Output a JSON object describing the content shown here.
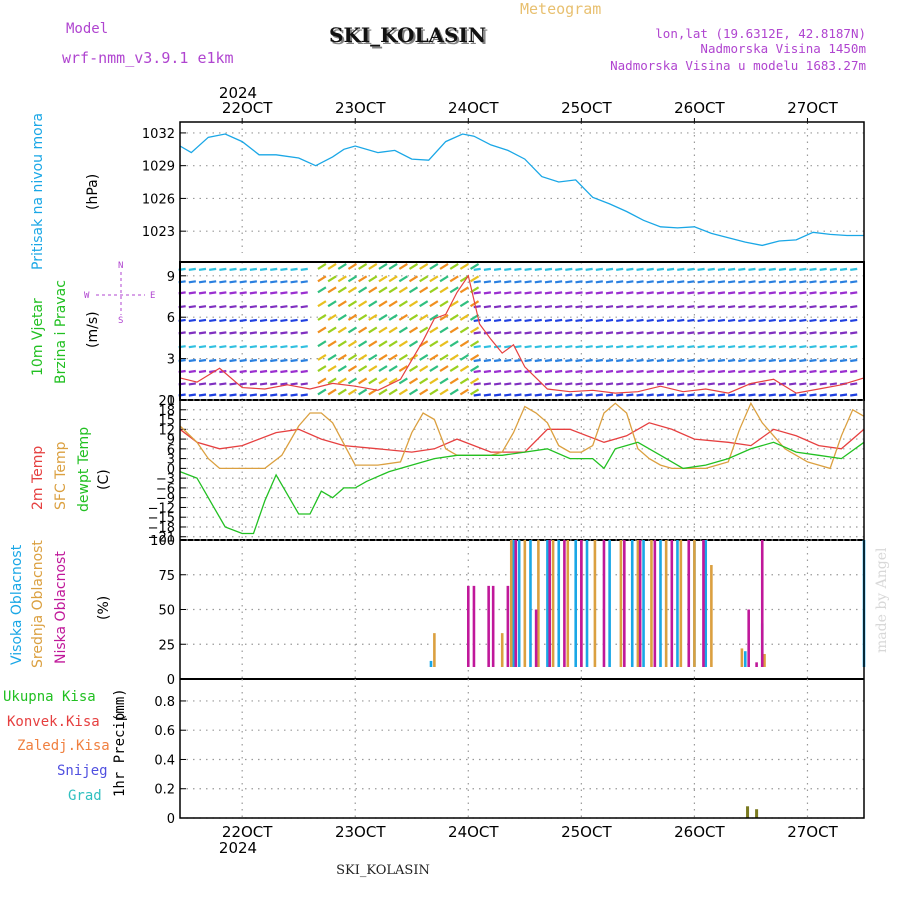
{
  "header": {
    "model_label": "Model",
    "model_value": "wrf-nmm_v3.9.1  e1km",
    "title": "SKI_KOLASIN",
    "meteogram": "Meteogram",
    "lonlat": "lon,lat (19.6312E, 42.8187N)",
    "altitude": "Nadmorska Visina 1450m",
    "model_altitude": "Nadmorska Visina u modelu 1683.27m",
    "footer_station": "SKI_KOLASIN",
    "watermark": "made by Angel"
  },
  "time_axis": {
    "year": "2024",
    "labels": [
      "22OCT",
      "23OCT",
      "24OCT",
      "25OCT",
      "26OCT",
      "27OCT"
    ]
  },
  "panel_labels": {
    "pressure": [
      "Pritisak na nivou mora",
      "(hPa)"
    ],
    "wind": [
      "10m Vjetar",
      "Brzina i Pravac",
      "(m/s)"
    ],
    "wind_compass": [
      "N",
      "W",
      "E",
      "S",
      "<",
      ">",
      "|",
      "^"
    ],
    "temp": [
      "2m Temp",
      "SFC Temp",
      "dewpt Temp",
      "(C)"
    ],
    "cloud": [
      "Visoka Oblacnost",
      "Srednja Oblacnost",
      "Niska Oblacnost",
      "(%)"
    ],
    "precip": [
      "Ukupna Kisa",
      "Konvek.Kisa",
      "Zaledj.Kisa",
      "Snijeg",
      "Grad",
      "1hr Precip",
      "(mm)"
    ]
  },
  "colors": {
    "pressure": "#1aa7e6",
    "temp2m": "#e64040",
    "sfc": "#dba040",
    "dew": "#22c022",
    "high": "#1aa7e6",
    "mid": "#dba040",
    "low": "#c0189a",
    "precip": "#7a7a20",
    "purple": "#b045d0"
  },
  "chart_data": [
    {
      "type": "line",
      "name": "pressure",
      "ylabel": "(hPa)",
      "ylim": [
        1021,
        1033
      ],
      "yticks": [
        1023,
        1026,
        1029,
        1032
      ],
      "x": [
        21.45,
        21.55,
        21.7,
        21.85,
        22.0,
        22.15,
        22.3,
        22.5,
        22.65,
        22.8,
        22.9,
        23.0,
        23.2,
        23.35,
        23.5,
        23.65,
        23.8,
        23.95,
        24.05,
        24.2,
        24.35,
        24.5,
        24.65,
        24.8,
        24.95,
        25.1,
        25.25,
        25.4,
        25.55,
        25.7,
        25.85,
        26.0,
        26.15,
        26.3,
        26.45,
        26.6,
        26.75,
        26.9,
        27.05,
        27.2,
        27.35,
        27.5
      ],
      "y": [
        1030.8,
        1030.2,
        1031.6,
        1031.9,
        1031.2,
        1030.0,
        1030.0,
        1029.7,
        1029.0,
        1029.8,
        1030.5,
        1030.8,
        1030.2,
        1030.4,
        1029.6,
        1029.5,
        1031.2,
        1031.9,
        1031.7,
        1030.9,
        1030.4,
        1029.6,
        1028.0,
        1027.5,
        1027.7,
        1026.1,
        1025.5,
        1024.8,
        1024.0,
        1023.4,
        1023.3,
        1023.4,
        1022.8,
        1022.4,
        1022.0,
        1021.7,
        1022.1,
        1022.2,
        1022.9,
        1022.7,
        1022.6,
        1022.6
      ]
    },
    {
      "type": "line",
      "name": "wind",
      "ylabel": "(m/s)",
      "ylim": [
        0,
        10
      ],
      "yticks": [
        0,
        3,
        6,
        9
      ],
      "x": [
        21.45,
        21.6,
        21.8,
        22.0,
        22.2,
        22.4,
        22.6,
        22.8,
        23.0,
        23.2,
        23.4,
        23.6,
        23.7,
        23.8,
        23.9,
        24.0,
        24.1,
        24.2,
        24.3,
        24.4,
        24.5,
        24.7,
        24.9,
        25.1,
        25.3,
        25.5,
        25.7,
        25.9,
        26.1,
        26.3,
        26.5,
        26.7,
        26.9,
        27.1,
        27.3,
        27.5
      ],
      "y": [
        1.6,
        1.3,
        2.3,
        0.9,
        0.8,
        1.1,
        0.8,
        1.2,
        1.0,
        0.7,
        1.5,
        4.3,
        5.9,
        6.2,
        7.8,
        9.0,
        5.5,
        4.4,
        3.4,
        4.0,
        2.4,
        0.8,
        0.6,
        0.7,
        0.5,
        0.6,
        1.0,
        0.6,
        0.8,
        0.5,
        1.2,
        1.5,
        0.5,
        0.8,
        1.1,
        1.6
      ]
    },
    {
      "type": "line",
      "name": "temperature",
      "ylabel": "(C)",
      "ylim": [
        -22,
        21
      ],
      "yticks": [
        -21,
        -18,
        -15,
        -12,
        -9,
        -6,
        -3,
        0,
        3,
        6,
        9,
        12,
        15,
        18,
        21
      ],
      "series": [
        {
          "name": "2m Temp",
          "x": [
            21.45,
            21.6,
            21.8,
            22.0,
            22.3,
            22.5,
            22.7,
            22.9,
            23.2,
            23.5,
            23.7,
            23.9,
            24.2,
            24.5,
            24.7,
            24.9,
            25.2,
            25.4,
            25.6,
            25.8,
            26.0,
            26.3,
            26.5,
            26.7,
            26.9,
            27.1,
            27.3,
            27.5
          ],
          "y": [
            12,
            8,
            6,
            7,
            11,
            12,
            9,
            7,
            6,
            5,
            6,
            9,
            5,
            5,
            12,
            12,
            8,
            10,
            14,
            12,
            9,
            8,
            7,
            12,
            10,
            7,
            6,
            12
          ]
        },
        {
          "name": "SFC Temp",
          "x": [
            21.45,
            21.6,
            21.7,
            21.8,
            21.9,
            22.0,
            22.1,
            22.2,
            22.35,
            22.5,
            22.6,
            22.7,
            22.8,
            23.0,
            23.2,
            23.4,
            23.5,
            23.6,
            23.7,
            23.8,
            23.9,
            24.0,
            24.2,
            24.3,
            24.4,
            24.5,
            24.6,
            24.7,
            24.8,
            24.9,
            25.0,
            25.1,
            25.2,
            25.3,
            25.4,
            25.5,
            25.6,
            25.7,
            25.8,
            25.9,
            26.0,
            26.1,
            26.2,
            26.3,
            26.4,
            26.5,
            26.6,
            26.7,
            26.8,
            26.9,
            27.0,
            27.1,
            27.2,
            27.3,
            27.4,
            27.5
          ],
          "y": [
            13,
            8,
            3,
            0,
            0,
            0,
            0,
            0,
            4,
            13,
            17,
            17,
            14,
            1,
            1,
            2,
            11,
            17,
            15,
            6,
            4,
            4,
            4,
            5,
            11,
            19,
            17,
            14,
            7,
            5,
            5,
            7,
            17,
            20,
            17,
            6,
            3,
            1,
            0,
            0,
            0,
            0,
            1,
            2,
            12,
            20,
            14,
            10,
            6,
            4,
            2,
            1,
            0,
            10,
            18,
            16
          ]
        },
        {
          "name": "dewpt Temp",
          "x": [
            21.45,
            21.6,
            21.7,
            21.75,
            21.85,
            22.0,
            22.1,
            22.2,
            22.3,
            22.4,
            22.5,
            22.6,
            22.7,
            22.8,
            22.9,
            23.0,
            23.1,
            23.3,
            23.5,
            23.7,
            23.9,
            24.1,
            24.3,
            24.5,
            24.7,
            24.9,
            25.1,
            25.2,
            25.3,
            25.5,
            25.7,
            25.9,
            26.1,
            26.3,
            26.5,
            26.7,
            26.9,
            27.1,
            27.3,
            27.5
          ],
          "y": [
            -1,
            -3,
            -9,
            -12,
            -18,
            -20,
            -20,
            -10,
            -2,
            -8,
            -14,
            -14,
            -7,
            -9,
            -6,
            -6,
            -4,
            -1,
            1,
            3,
            4,
            4,
            4,
            5,
            6,
            3,
            3,
            0,
            6,
            8,
            4,
            0,
            1,
            3,
            6,
            8,
            5,
            4,
            3,
            8
          ]
        }
      ]
    },
    {
      "type": "bar",
      "name": "cloud",
      "ylabel": "(%)",
      "ylim": [
        0,
        100
      ],
      "yticks": [
        0,
        25,
        50,
        75,
        100
      ],
      "series": [
        {
          "name": "Visoka Oblacnost",
          "x": [
            23.67,
            24.4,
            24.45,
            24.55,
            24.7,
            24.8,
            24.95,
            25.05,
            25.25,
            25.45,
            25.55,
            25.7,
            25.85,
            26.0,
            26.1,
            26.45,
            26.6,
            27.5
          ],
          "values": [
            13,
            100,
            100,
            100,
            100,
            100,
            100,
            100,
            100,
            100,
            100,
            100,
            100,
            100,
            100,
            20,
            40,
            100
          ]
        },
        {
          "name": "Srednja Oblacnost",
          "x": [
            23.7,
            24.3,
            24.38,
            24.5,
            24.62,
            24.75,
            24.88,
            25.0,
            25.12,
            25.35,
            25.5,
            25.62,
            25.75,
            25.88,
            26.0,
            26.15,
            26.42,
            26.62
          ],
          "values": [
            33,
            33,
            100,
            100,
            100,
            100,
            100,
            100,
            100,
            100,
            100,
            100,
            100,
            100,
            100,
            82,
            22,
            18
          ]
        },
        {
          "name": "Niska Oblacnost",
          "x": [
            24.0,
            24.05,
            24.18,
            24.22,
            24.35,
            24.42,
            24.6,
            24.72,
            24.85,
            25.0,
            25.2,
            25.38,
            25.52,
            25.65,
            25.8,
            25.95,
            26.08,
            26.48,
            26.55,
            26.6
          ],
          "values": [
            67,
            67,
            67,
            67,
            67,
            100,
            50,
            100,
            100,
            100,
            100,
            100,
            100,
            100,
            100,
            100,
            100,
            50,
            12,
            100
          ]
        }
      ]
    },
    {
      "type": "bar",
      "name": "precip",
      "ylabel": "1hr Precip (mm)",
      "ylim": [
        0,
        0.95
      ],
      "yticks": [
        0,
        0.2,
        0.4,
        0.6,
        0.8
      ],
      "x": [
        26.47,
        26.55
      ],
      "values": [
        0.08,
        0.06
      ]
    }
  ]
}
